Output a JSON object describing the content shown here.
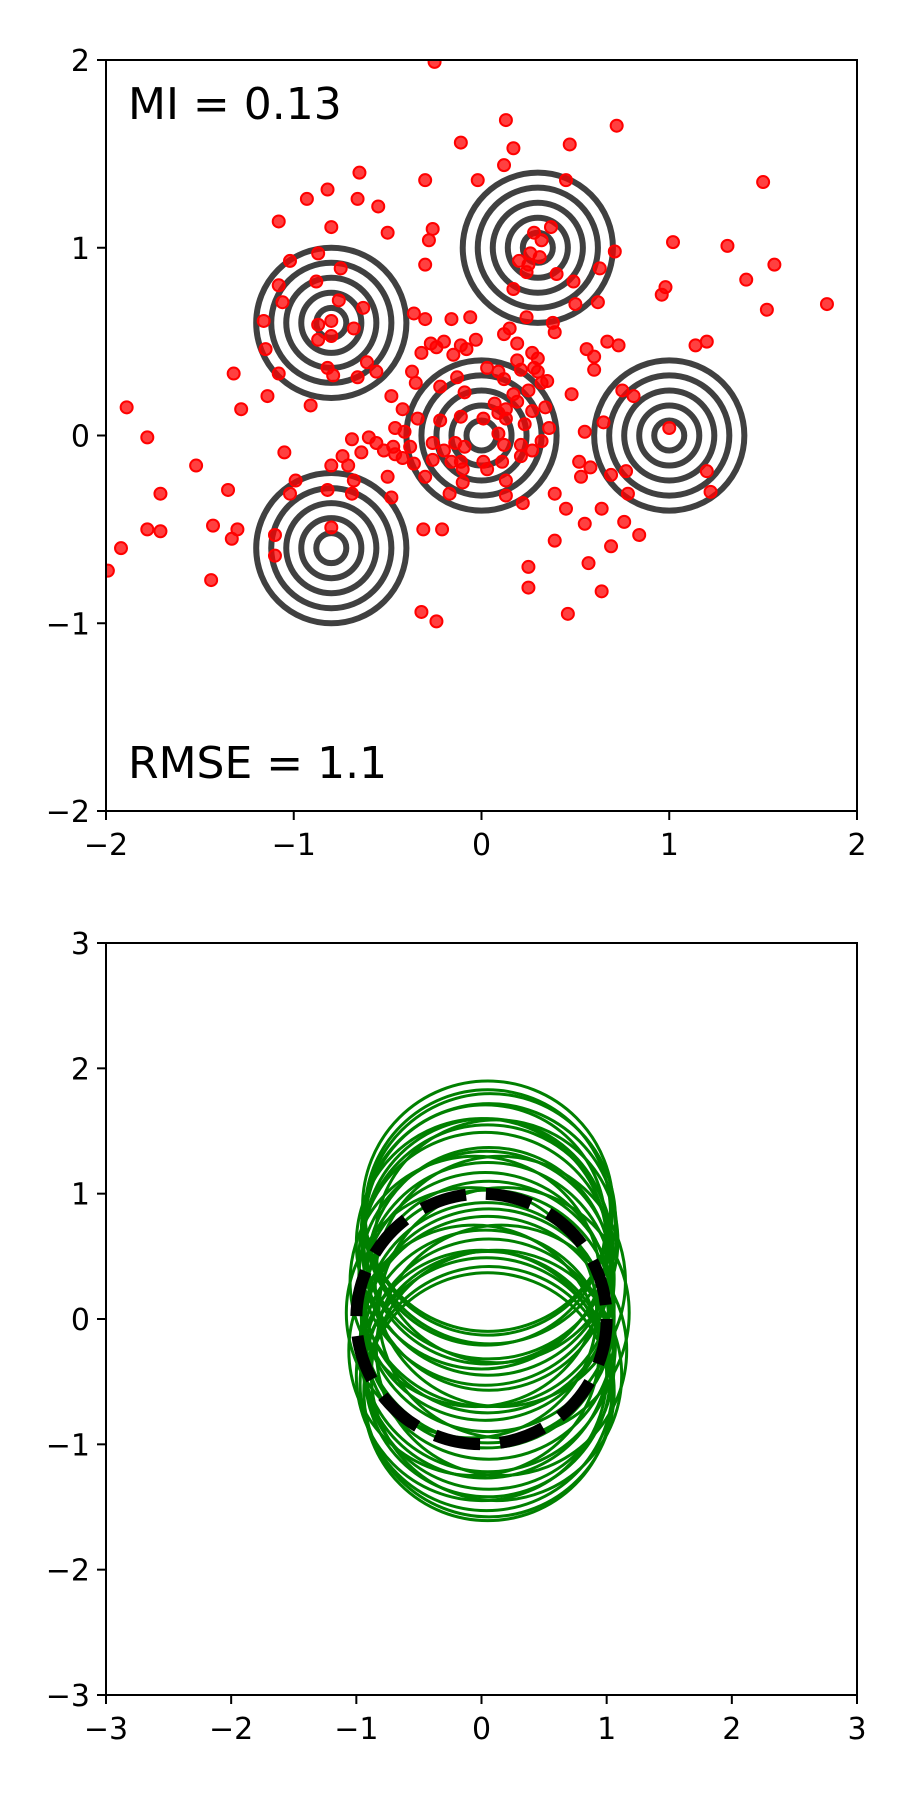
{
  "colors": {
    "scatter": "#ff0000",
    "contour": "#404040",
    "circles": "#008000",
    "true_circle": "#000000"
  },
  "chart_data": [
    {
      "type": "scatter",
      "panel": "top",
      "xlim": [
        -2,
        2
      ],
      "ylim": [
        -2,
        2
      ],
      "xticks": [
        "−2",
        "−1",
        "0",
        "1",
        "2"
      ],
      "yticks": [
        "−2",
        "−1",
        "0",
        "1",
        "2"
      ],
      "grid": false,
      "annotations": {
        "mi": "MI = 0.13",
        "rmse": "RMSE = 1.1"
      },
      "contour_centers": [
        [
          -0.8,
          0.6
        ],
        [
          0.3,
          1.0
        ],
        [
          0.0,
          0.0
        ],
        [
          1.0,
          0.0
        ],
        [
          -0.8,
          -0.6
        ]
      ],
      "contour_levels_radius": [
        0.08,
        0.16,
        0.24,
        0.32,
        0.4
      ],
      "points": [
        [
          -0.25,
          1.99
        ],
        [
          0.13,
          1.68
        ],
        [
          0.72,
          1.65
        ],
        [
          -0.11,
          1.56
        ],
        [
          0.17,
          1.53
        ],
        [
          0.47,
          1.55
        ],
        [
          -0.65,
          1.4
        ],
        [
          -0.3,
          1.36
        ],
        [
          -0.02,
          1.36
        ],
        [
          0.45,
          1.36
        ],
        [
          0.12,
          1.44
        ],
        [
          1.5,
          1.35
        ],
        [
          -0.66,
          1.26
        ],
        [
          -0.55,
          1.22
        ],
        [
          -0.82,
          1.31
        ],
        [
          -0.93,
          1.26
        ],
        [
          -1.08,
          1.14
        ],
        [
          -0.8,
          1.11
        ],
        [
          -0.26,
          1.1
        ],
        [
          -0.28,
          1.04
        ],
        [
          -0.5,
          1.08
        ],
        [
          -0.3,
          0.91
        ],
        [
          0.37,
          1.11
        ],
        [
          0.28,
          1.08
        ],
        [
          0.32,
          1.04
        ],
        [
          0.26,
          0.97
        ],
        [
          0.71,
          0.98
        ],
        [
          1.02,
          1.03
        ],
        [
          1.31,
          1.01
        ],
        [
          1.56,
          0.91
        ],
        [
          -0.87,
          0.97
        ],
        [
          -0.75,
          0.89
        ],
        [
          -1.02,
          0.93
        ],
        [
          -1.08,
          0.8
        ],
        [
          -0.88,
          0.82
        ],
        [
          -1.06,
          0.71
        ],
        [
          -0.76,
          0.72
        ],
        [
          0.2,
          0.93
        ],
        [
          0.25,
          0.91
        ],
        [
          0.31,
          0.95
        ],
        [
          0.24,
          0.87
        ],
        [
          0.4,
          0.86
        ],
        [
          0.17,
          0.78
        ],
        [
          0.63,
          0.89
        ],
        [
          0.49,
          0.82
        ],
        [
          0.5,
          0.7
        ],
        [
          0.62,
          0.71
        ],
        [
          0.98,
          0.79
        ],
        [
          0.96,
          0.75
        ],
        [
          1.41,
          0.83
        ],
        [
          1.52,
          0.67
        ],
        [
          1.84,
          0.7
        ],
        [
          -1.16,
          0.61
        ],
        [
          -0.63,
          0.68
        ],
        [
          -0.36,
          0.65
        ],
        [
          -0.3,
          0.62
        ],
        [
          -0.8,
          0.53
        ],
        [
          -0.87,
          0.59
        ],
        [
          -0.16,
          0.62
        ],
        [
          -0.06,
          0.63
        ],
        [
          -0.8,
          0.61
        ],
        [
          -0.68,
          0.57
        ],
        [
          0.15,
          0.57
        ],
        [
          0.24,
          0.63
        ],
        [
          0.38,
          0.6
        ],
        [
          0.67,
          0.5
        ],
        [
          0.73,
          0.48
        ],
        [
          0.12,
          0.54
        ],
        [
          0.27,
          0.44
        ],
        [
          0.19,
          0.49
        ],
        [
          0.3,
          0.41
        ],
        [
          -1.15,
          0.46
        ],
        [
          -0.87,
          0.51
        ],
        [
          -0.27,
          0.49
        ],
        [
          -0.2,
          0.5
        ],
        [
          -0.24,
          0.47
        ],
        [
          -0.11,
          0.48
        ],
        [
          -0.08,
          0.46
        ],
        [
          -0.03,
          0.51
        ],
        [
          0.39,
          0.55
        ],
        [
          0.56,
          0.46
        ],
        [
          0.19,
          0.4
        ],
        [
          0.28,
          0.36
        ],
        [
          0.6,
          0.42
        ],
        [
          1.14,
          0.48
        ],
        [
          1.2,
          0.5
        ],
        [
          -0.61,
          0.39
        ],
        [
          -0.32,
          0.44
        ],
        [
          -0.15,
          0.43
        ],
        [
          -0.82,
          0.36
        ],
        [
          -0.79,
          0.32
        ],
        [
          -0.66,
          0.31
        ],
        [
          -0.56,
          0.34
        ],
        [
          -0.37,
          0.34
        ],
        [
          -0.35,
          0.28
        ],
        [
          -0.13,
          0.31
        ],
        [
          0.03,
          0.36
        ],
        [
          0.09,
          0.34
        ],
        [
          0.12,
          0.3
        ],
        [
          0.21,
          0.35
        ],
        [
          0.3,
          0.34
        ],
        [
          0.35,
          0.29
        ],
        [
          0.6,
          0.35
        ],
        [
          -1.32,
          0.33
        ],
        [
          -1.08,
          0.33
        ],
        [
          -0.22,
          0.26
        ],
        [
          -0.09,
          0.23
        ],
        [
          0.17,
          0.22
        ],
        [
          0.25,
          0.24
        ],
        [
          0.32,
          0.28
        ],
        [
          0.48,
          0.22
        ],
        [
          0.75,
          0.24
        ],
        [
          0.81,
          0.21
        ],
        [
          -1.89,
          0.15
        ],
        [
          -1.28,
          0.14
        ],
        [
          -1.14,
          0.21
        ],
        [
          -0.91,
          0.16
        ],
        [
          -0.48,
          0.21
        ],
        [
          -0.42,
          0.14
        ],
        [
          0.07,
          0.17
        ],
        [
          0.09,
          0.12
        ],
        [
          0.13,
          0.14
        ],
        [
          0.19,
          0.18
        ],
        [
          0.27,
          0.13
        ],
        [
          0.34,
          0.15
        ],
        [
          -0.46,
          0.04
        ],
        [
          -0.41,
          0.02
        ],
        [
          -0.34,
          0.09
        ],
        [
          -0.22,
          0.08
        ],
        [
          -0.11,
          0.1
        ],
        [
          0.01,
          0.09
        ],
        [
          0.09,
          0.01
        ],
        [
          0.13,
          0.09
        ],
        [
          0.23,
          0.06
        ],
        [
          0.36,
          0.04
        ],
        [
          0.55,
          0.02
        ],
        [
          0.65,
          0.07
        ],
        [
          1.0,
          0.04
        ],
        [
          -1.78,
          -0.01
        ],
        [
          -0.69,
          -0.02
        ],
        [
          -0.6,
          -0.01
        ],
        [
          -0.56,
          -0.04
        ],
        [
          -0.52,
          -0.08
        ],
        [
          -0.47,
          -0.06
        ],
        [
          -0.38,
          -0.06
        ],
        [
          -0.26,
          -0.04
        ],
        [
          -0.2,
          -0.08
        ],
        [
          -0.14,
          -0.04
        ],
        [
          -0.09,
          -0.06
        ],
        [
          0.12,
          -0.05
        ],
        [
          0.21,
          -0.05
        ],
        [
          0.27,
          -0.08
        ],
        [
          0.32,
          -0.03
        ],
        [
          -1.52,
          -0.16
        ],
        [
          -1.05,
          -0.09
        ],
        [
          -0.74,
          -0.11
        ],
        [
          -0.64,
          -0.09
        ],
        [
          -0.46,
          -0.1
        ],
        [
          -0.42,
          -0.12
        ],
        [
          -0.36,
          -0.15
        ],
        [
          -0.26,
          -0.13
        ],
        [
          -0.16,
          -0.14
        ],
        [
          -0.11,
          -0.14
        ],
        [
          0.01,
          -0.14
        ],
        [
          0.11,
          -0.14
        ],
        [
          0.21,
          -0.11
        ],
        [
          0.52,
          -0.14
        ],
        [
          0.58,
          -0.17
        ],
        [
          -0.99,
          -0.24
        ],
        [
          -0.8,
          -0.16
        ],
        [
          -0.71,
          -0.16
        ],
        [
          -0.68,
          -0.24
        ],
        [
          -0.5,
          -0.22
        ],
        [
          -0.3,
          -0.22
        ],
        [
          -0.1,
          -0.18
        ],
        [
          -0.1,
          -0.25
        ],
        [
          0.03,
          -0.18
        ],
        [
          0.13,
          -0.24
        ],
        [
          0.53,
          -0.22
        ],
        [
          0.69,
          -0.21
        ],
        [
          0.77,
          -0.19
        ],
        [
          1.2,
          -0.19
        ],
        [
          -1.71,
          -0.31
        ],
        [
          -1.35,
          -0.29
        ],
        [
          -1.02,
          -0.31
        ],
        [
          -0.82,
          -0.29
        ],
        [
          -0.69,
          -0.31
        ],
        [
          -0.48,
          -0.33
        ],
        [
          -0.17,
          -0.31
        ],
        [
          0.13,
          -0.32
        ],
        [
          0.39,
          -0.31
        ],
        [
          0.64,
          -0.39
        ],
        [
          0.78,
          -0.31
        ],
        [
          1.22,
          -0.3
        ],
        [
          -1.78,
          -0.5
        ],
        [
          -1.71,
          -0.51
        ],
        [
          -1.43,
          -0.48
        ],
        [
          -1.3,
          -0.5
        ],
        [
          -1.33,
          -0.55
        ],
        [
          -1.1,
          -0.53
        ],
        [
          -0.8,
          -0.49
        ],
        [
          -0.31,
          -0.5
        ],
        [
          -0.21,
          -0.5
        ],
        [
          0.22,
          -0.36
        ],
        [
          0.45,
          -0.39
        ],
        [
          0.55,
          -0.47
        ],
        [
          0.76,
          -0.46
        ],
        [
          0.84,
          -0.53
        ],
        [
          0.39,
          -0.56
        ],
        [
          0.69,
          -0.59
        ],
        [
          -1.92,
          -0.6
        ],
        [
          -1.1,
          -0.64
        ],
        [
          0.25,
          -0.7
        ],
        [
          0.57,
          -0.68
        ],
        [
          -1.99,
          -0.72
        ],
        [
          -1.44,
          -0.77
        ],
        [
          0.25,
          -0.81
        ],
        [
          0.64,
          -0.83
        ],
        [
          -0.32,
          -0.94
        ],
        [
          0.46,
          -0.95
        ],
        [
          -0.24,
          -0.99
        ]
      ]
    },
    {
      "type": "line",
      "panel": "bottom",
      "xlim": [
        -3,
        3
      ],
      "ylim": [
        -3,
        3
      ],
      "xticks": [
        "−3",
        "−2",
        "−1",
        "0",
        "1",
        "2",
        "3"
      ],
      "yticks": [
        "−3",
        "−2",
        "−1",
        "0",
        "1",
        "2",
        "3"
      ],
      "grid": false,
      "true_circle": {
        "center": [
          0,
          0
        ],
        "radius": 1.0,
        "style": "dashed"
      },
      "sample_circles": [
        {
          "center": [
            0.05,
            0.9
          ],
          "radius": 1.0
        },
        {
          "center": [
            0.05,
            0.85
          ],
          "radius": 0.98
        },
        {
          "center": [
            0.07,
            0.8
          ],
          "radius": 1.0
        },
        {
          "center": [
            0.03,
            0.75
          ],
          "radius": 0.96
        },
        {
          "center": [
            0.06,
            0.7
          ],
          "radius": 1.02
        },
        {
          "center": [
            0.04,
            0.62
          ],
          "radius": 0.98
        },
        {
          "center": [
            0.05,
            0.55
          ],
          "radius": 1.0
        },
        {
          "center": [
            0.03,
            0.48
          ],
          "radius": 1.01
        },
        {
          "center": [
            0.06,
            0.4
          ],
          "radius": 0.97
        },
        {
          "center": [
            0.04,
            0.32
          ],
          "radius": 1.02
        },
        {
          "center": [
            0.05,
            0.25
          ],
          "radius": 1.0
        },
        {
          "center": [
            0.03,
            0.18
          ],
          "radius": 0.99
        },
        {
          "center": [
            0.06,
            0.1
          ],
          "radius": 1.0
        },
        {
          "center": [
            0.05,
            0.02
          ],
          "radius": 1.01
        },
        {
          "center": [
            0.04,
            -0.05
          ],
          "radius": 0.98
        },
        {
          "center": [
            0.06,
            -0.12
          ],
          "radius": 1.0
        },
        {
          "center": [
            0.05,
            -0.2
          ],
          "radius": 1.02
        },
        {
          "center": [
            0.03,
            -0.28
          ],
          "radius": 0.99
        },
        {
          "center": [
            0.06,
            -0.36
          ],
          "radius": 1.0
        },
        {
          "center": [
            0.05,
            -0.44
          ],
          "radius": 0.98
        },
        {
          "center": [
            0.04,
            -0.52
          ],
          "radius": 1.01
        },
        {
          "center": [
            0.06,
            -0.58
          ],
          "radius": 1.0
        },
        {
          "center": [
            0.05,
            -0.62
          ],
          "radius": 0.99
        },
        {
          "center": [
            -0.05,
            0.3
          ],
          "radius": 1.0
        },
        {
          "center": [
            0.15,
            0.3
          ],
          "radius": 1.0
        },
        {
          "center": [
            -0.08,
            0.05
          ],
          "radius": 1.0
        },
        {
          "center": [
            0.18,
            0.05
          ],
          "radius": 1.0
        },
        {
          "center": [
            -0.06,
            -0.25
          ],
          "radius": 1.0
        },
        {
          "center": [
            0.16,
            -0.25
          ],
          "radius": 1.0
        },
        {
          "center": [
            0.0,
            0.6
          ],
          "radius": 1.0
        },
        {
          "center": [
            0.12,
            0.62
          ],
          "radius": 0.97
        },
        {
          "center": [
            0.0,
            -0.45
          ],
          "radius": 1.0
        },
        {
          "center": [
            0.12,
            -0.45
          ],
          "radius": 1.0
        }
      ]
    }
  ]
}
